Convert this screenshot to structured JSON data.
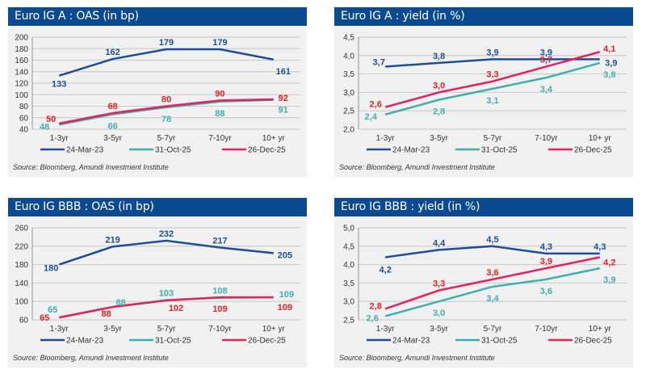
{
  "colors": {
    "header": "#0b4a91",
    "mar23": "#1f4e95",
    "oct25": "#3fb0ac",
    "dec25_line": "#e0245e",
    "dec25_label": "#e8201f"
  },
  "source": "Source: Bloomberg, Amundi Investment Institute",
  "chart_data": [
    {
      "type": "line",
      "title": "Euro IG A : OAS (in bp)",
      "categories": [
        "1-3yr",
        "3-5yr",
        "5-7yr",
        "7-10yr",
        "10+ yr"
      ],
      "ylim": [
        40,
        200
      ],
      "yticks": [
        40,
        60,
        80,
        100,
        120,
        140,
        160,
        180,
        200
      ],
      "decimals": 0,
      "grid": true,
      "legend": "bottom",
      "series": [
        {
          "name": "24-Mar-23",
          "values": [
            133,
            162,
            179,
            179,
            161
          ]
        },
        {
          "name": "31-Oct-25",
          "values": [
            48,
            66,
            78,
            88,
            91
          ]
        },
        {
          "name": "26-Dec-25",
          "values": [
            50,
            68,
            80,
            90,
            92
          ]
        }
      ]
    },
    {
      "type": "line",
      "title": "Euro IG A : yield (in %)",
      "categories": [
        "1-3yr",
        "3-5yr",
        "5-7yr",
        "7-10yr",
        "10+ yr"
      ],
      "ylim": [
        2.0,
        4.5
      ],
      "yticks": [
        2.0,
        2.5,
        3.0,
        3.5,
        4.0,
        4.5
      ],
      "decimals": 1,
      "grid": true,
      "legend": "bottom",
      "series": [
        {
          "name": "24-Mar-23",
          "values": [
            3.7,
            3.8,
            3.9,
            3.9,
            3.9
          ]
        },
        {
          "name": "31-Oct-25",
          "values": [
            2.4,
            2.8,
            3.1,
            3.4,
            3.8
          ]
        },
        {
          "name": "26-Dec-25",
          "values": [
            2.6,
            3.0,
            3.3,
            3.7,
            4.1
          ]
        }
      ]
    },
    {
      "type": "line",
      "title": "Euro IG BBB : OAS (in bp)",
      "categories": [
        "1-3yr",
        "3-5yr",
        "5-7yr",
        "7-10yr",
        "10+ yr"
      ],
      "ylim": [
        60,
        260
      ],
      "yticks": [
        60,
        100,
        140,
        180,
        220,
        260
      ],
      "decimals": 0,
      "grid": true,
      "legend": "bottom",
      "series": [
        {
          "name": "24-Mar-23",
          "values": [
            180,
            219,
            232,
            217,
            205
          ]
        },
        {
          "name": "31-Oct-25",
          "values": [
            65,
            88,
            103,
            108,
            109
          ]
        },
        {
          "name": "26-Dec-25",
          "values": [
            65,
            88,
            102,
            109,
            109
          ]
        }
      ]
    },
    {
      "type": "line",
      "title": "Euro IG BBB : yield (in %)",
      "categories": [
        "1-3yr",
        "3-5yr",
        "5-7yr",
        "7-10yr",
        "10+ yr"
      ],
      "ylim": [
        2.5,
        5.0
      ],
      "yticks": [
        2.5,
        3.0,
        3.5,
        4.0,
        4.5,
        5.0
      ],
      "decimals": 1,
      "grid": true,
      "legend": "bottom",
      "series": [
        {
          "name": "24-Mar-23",
          "values": [
            4.2,
            4.4,
            4.5,
            4.3,
            4.3
          ]
        },
        {
          "name": "31-Oct-25",
          "values": [
            2.6,
            3.0,
            3.4,
            3.6,
            3.9
          ]
        },
        {
          "name": "26-Dec-25",
          "values": [
            2.8,
            3.3,
            3.6,
            3.9,
            4.2
          ]
        }
      ]
    }
  ]
}
